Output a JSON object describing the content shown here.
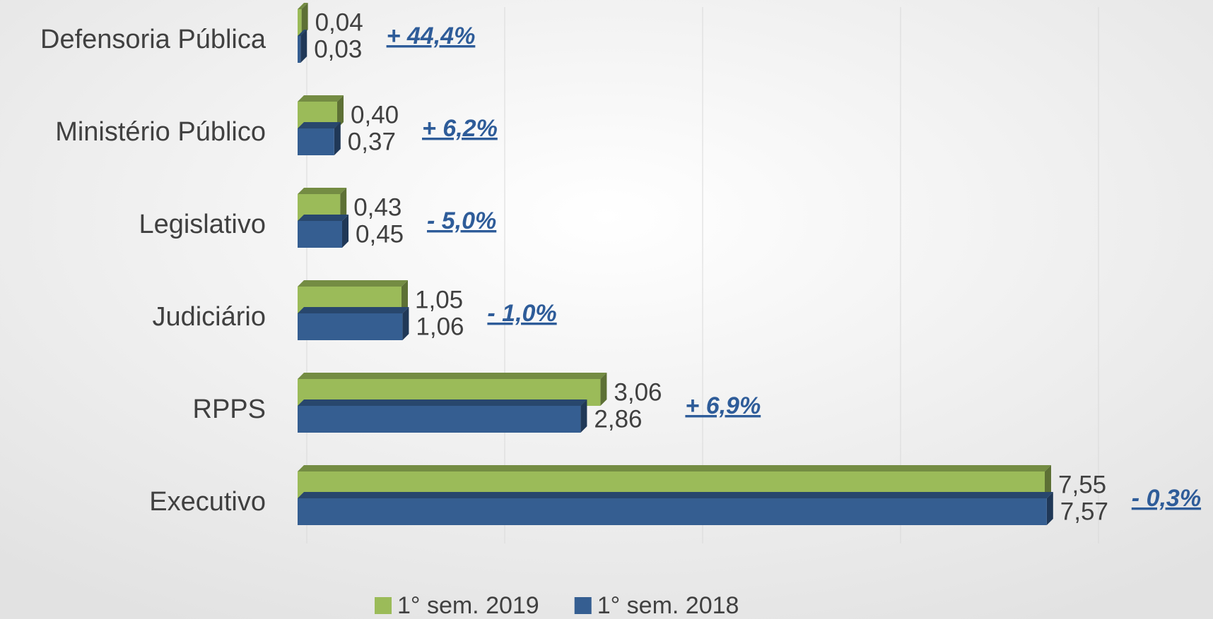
{
  "chart_data": {
    "type": "bar",
    "orientation": "horizontal",
    "categories": [
      "Defensoria Pública",
      "Ministério Público",
      "Legislativo",
      "Judiciário",
      "RPPS",
      "Executivo"
    ],
    "series": [
      {
        "name": "1° sem. 2019",
        "color": "#9bbb59",
        "values": [
          0.04,
          0.4,
          0.43,
          1.05,
          3.06,
          7.55
        ],
        "value_labels": [
          "0,04",
          "0,40",
          "0,43",
          "1,05",
          "3,06",
          "7,55"
        ]
      },
      {
        "name": "1° sem. 2018",
        "color": "#355e91",
        "values": [
          0.03,
          0.37,
          0.45,
          1.06,
          2.86,
          7.57
        ],
        "value_labels": [
          "0,03",
          "0,37",
          "0,45",
          "1,06",
          "2,86",
          "7,57"
        ]
      }
    ],
    "annotations": [
      "+ 44,4%",
      "+ 6,2%",
      "- 5,0%",
      "- 1,0%",
      "+ 6,9%",
      "- 0,3%"
    ],
    "xlim": [
      0,
      8
    ],
    "xticks": [
      0,
      2,
      4,
      6,
      8
    ],
    "grid": true,
    "legend": "bottom"
  }
}
